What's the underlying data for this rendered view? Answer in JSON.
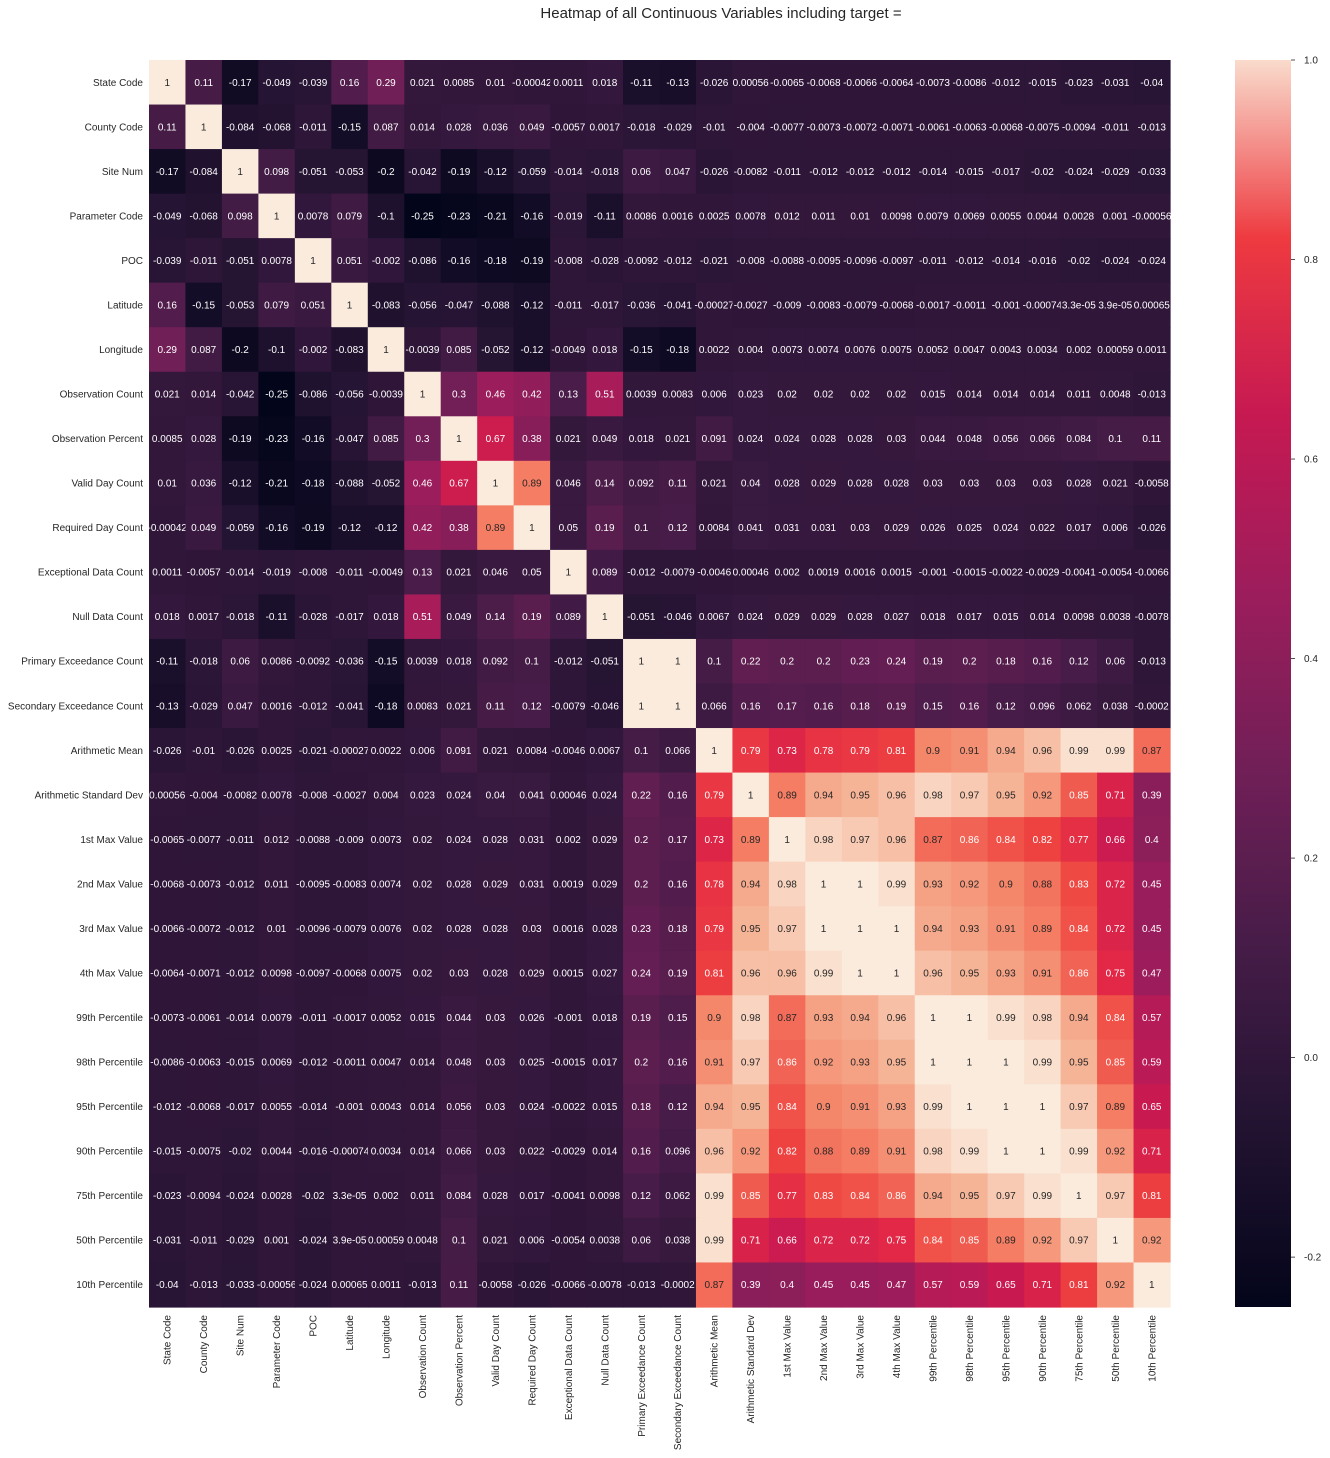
{
  "chart_data": {
    "type": "heatmap",
    "title": "Heatmap of all Continuous Variables including target =",
    "variables": [
      "State Code",
      "County Code",
      "Site Num",
      "Parameter Code",
      "POC",
      "Latitude",
      "Longitude",
      "Observation Count",
      "Observation Percent",
      "Valid Day Count",
      "Required Day Count",
      "Exceptional Data Count",
      "Null Data Count",
      "Primary Exceedance Count",
      "Secondary Exceedance Count",
      "Arithmetic Mean",
      "Arithmetic Standard Dev",
      "1st Max Value",
      "2nd Max Value",
      "3rd Max Value",
      "4th Max Value",
      "99th Percentile",
      "98th Percentile",
      "95th Percentile",
      "90th Percentile",
      "75th Percentile",
      "50th Percentile",
      "10th Percentile"
    ],
    "values": [
      [
        "1",
        "0.11",
        "-0.17",
        "-0.049",
        "-0.039",
        "0.16",
        "0.29",
        "0.021",
        "0.0085",
        "0.01",
        "-0.00042",
        "0.0011",
        "0.018",
        "-0.11",
        "-0.13",
        "-0.026",
        "0.00056",
        "-0.0065",
        "-0.0068",
        "-0.0066",
        "-0.0064",
        "-0.0073",
        "-0.0086",
        "-0.012",
        "-0.015",
        "-0.023",
        "-0.031",
        "-0.04"
      ],
      [
        "0.11",
        "1",
        "-0.084",
        "-0.068",
        "-0.011",
        "-0.15",
        "0.087",
        "0.014",
        "0.028",
        "0.036",
        "0.049",
        "-0.0057",
        "0.0017",
        "-0.018",
        "-0.029",
        "-0.01",
        "-0.004",
        "-0.0077",
        "-0.0073",
        "-0.0072",
        "-0.0071",
        "-0.0061",
        "-0.0063",
        "-0.0068",
        "-0.0075",
        "-0.0094",
        "-0.011",
        "-0.013"
      ],
      [
        "-0.17",
        "-0.084",
        "1",
        "0.098",
        "-0.051",
        "-0.053",
        "-0.2",
        "-0.042",
        "-0.19",
        "-0.12",
        "-0.059",
        "-0.014",
        "-0.018",
        "0.06",
        "0.047",
        "-0.026",
        "-0.0082",
        "-0.011",
        "-0.012",
        "-0.012",
        "-0.012",
        "-0.014",
        "-0.015",
        "-0.017",
        "-0.02",
        "-0.024",
        "-0.029",
        "-0.033"
      ],
      [
        "-0.049",
        "-0.068",
        "0.098",
        "1",
        "0.0078",
        "0.079",
        "-0.1",
        "-0.25",
        "-0.23",
        "-0.21",
        "-0.16",
        "-0.019",
        "-0.11",
        "0.0086",
        "0.0016",
        "0.0025",
        "0.0078",
        "0.012",
        "0.011",
        "0.01",
        "0.0098",
        "0.0079",
        "0.0069",
        "0.0055",
        "0.0044",
        "0.0028",
        "0.001",
        "-0.00056"
      ],
      [
        "-0.039",
        "-0.011",
        "-0.051",
        "0.0078",
        "1",
        "0.051",
        "-0.002",
        "-0.086",
        "-0.16",
        "-0.18",
        "-0.19",
        "-0.008",
        "-0.028",
        "-0.0092",
        "-0.012",
        "-0.021",
        "-0.008",
        "-0.0088",
        "-0.0095",
        "-0.0096",
        "-0.0097",
        "-0.011",
        "-0.012",
        "-0.014",
        "-0.016",
        "-0.02",
        "-0.024",
        "-0.024"
      ],
      [
        "0.16",
        "-0.15",
        "-0.053",
        "0.079",
        "0.051",
        "1",
        "-0.083",
        "-0.056",
        "-0.047",
        "-0.088",
        "-0.12",
        "-0.011",
        "-0.017",
        "-0.036",
        "-0.041",
        "-0.00027",
        "-0.0027",
        "-0.009",
        "-0.0083",
        "-0.0079",
        "-0.0068",
        "-0.0017",
        "-0.0011",
        "-0.001",
        "-0.00074",
        "3.3e-05",
        "3.9e-05",
        "0.00065"
      ],
      [
        "0.29",
        "0.087",
        "-0.2",
        "-0.1",
        "-0.002",
        "-0.083",
        "1",
        "-0.0039",
        "0.085",
        "-0.052",
        "-0.12",
        "-0.0049",
        "0.018",
        "-0.15",
        "-0.18",
        "0.0022",
        "0.004",
        "0.0073",
        "0.0074",
        "0.0076",
        "0.0075",
        "0.0052",
        "0.0047",
        "0.0043",
        "0.0034",
        "0.002",
        "0.00059",
        "0.0011"
      ],
      [
        "0.021",
        "0.014",
        "-0.042",
        "-0.25",
        "-0.086",
        "-0.056",
        "-0.0039",
        "1",
        "0.3",
        "0.46",
        "0.42",
        "0.13",
        "0.51",
        "0.0039",
        "0.0083",
        "0.006",
        "0.023",
        "0.02",
        "0.02",
        "0.02",
        "0.02",
        "0.015",
        "0.014",
        "0.014",
        "0.014",
        "0.011",
        "0.0048",
        "-0.013"
      ],
      [
        "0.0085",
        "0.028",
        "-0.19",
        "-0.23",
        "-0.16",
        "-0.047",
        "0.085",
        "0.3",
        "1",
        "0.67",
        "0.38",
        "0.021",
        "0.049",
        "0.018",
        "0.021",
        "0.091",
        "0.024",
        "0.024",
        "0.028",
        "0.028",
        "0.03",
        "0.044",
        "0.048",
        "0.056",
        "0.066",
        "0.084",
        "0.1",
        "0.11"
      ],
      [
        "0.01",
        "0.036",
        "-0.12",
        "-0.21",
        "-0.18",
        "-0.088",
        "-0.052",
        "0.46",
        "0.67",
        "1",
        "0.89",
        "0.046",
        "0.14",
        "0.092",
        "0.11",
        "0.021",
        "0.04",
        "0.028",
        "0.029",
        "0.028",
        "0.028",
        "0.03",
        "0.03",
        "0.03",
        "0.03",
        "0.028",
        "0.021",
        "-0.0058"
      ],
      [
        "-0.00042",
        "0.049",
        "-0.059",
        "-0.16",
        "-0.19",
        "-0.12",
        "-0.12",
        "0.42",
        "0.38",
        "0.89",
        "1",
        "0.05",
        "0.19",
        "0.1",
        "0.12",
        "0.0084",
        "0.041",
        "0.031",
        "0.031",
        "0.03",
        "0.029",
        "0.026",
        "0.025",
        "0.024",
        "0.022",
        "0.017",
        "0.006",
        "-0.026"
      ],
      [
        "0.0011",
        "-0.0057",
        "-0.014",
        "-0.019",
        "-0.008",
        "-0.011",
        "-0.0049",
        "0.13",
        "0.021",
        "0.046",
        "0.05",
        "1",
        "0.089",
        "-0.012",
        "-0.0079",
        "-0.0046",
        "0.00046",
        "0.002",
        "0.0019",
        "0.0016",
        "0.0015",
        "-0.001",
        "-0.0015",
        "-0.0022",
        "-0.0029",
        "-0.0041",
        "-0.0054",
        "-0.0066"
      ],
      [
        "0.018",
        "0.0017",
        "-0.018",
        "-0.11",
        "-0.028",
        "-0.017",
        "0.018",
        "0.51",
        "0.049",
        "0.14",
        "0.19",
        "0.089",
        "1",
        "-0.051",
        "-0.046",
        "0.0067",
        "0.024",
        "0.029",
        "0.029",
        "0.028",
        "0.027",
        "0.018",
        "0.017",
        "0.015",
        "0.014",
        "0.0098",
        "0.0038",
        "-0.0078"
      ],
      [
        "-0.11",
        "-0.018",
        "0.06",
        "0.0086",
        "-0.0092",
        "-0.036",
        "-0.15",
        "0.0039",
        "0.018",
        "0.092",
        "0.1",
        "-0.012",
        "-0.051",
        "1",
        "1",
        "0.1",
        "0.22",
        "0.2",
        "0.2",
        "0.23",
        "0.24",
        "0.19",
        "0.2",
        "0.18",
        "0.16",
        "0.12",
        "0.06",
        "-0.013"
      ],
      [
        "-0.13",
        "-0.029",
        "0.047",
        "0.0016",
        "-0.012",
        "-0.041",
        "-0.18",
        "0.0083",
        "0.021",
        "0.11",
        "0.12",
        "-0.0079",
        "-0.046",
        "1",
        "1",
        "0.066",
        "0.16",
        "0.17",
        "0.16",
        "0.18",
        "0.19",
        "0.15",
        "0.16",
        "0.12",
        "0.096",
        "0.062",
        "0.038",
        "-0.0002"
      ],
      [
        "-0.026",
        "-0.01",
        "-0.026",
        "0.0025",
        "-0.021",
        "-0.00027",
        "0.0022",
        "0.006",
        "0.091",
        "0.021",
        "0.0084",
        "-0.0046",
        "0.0067",
        "0.1",
        "0.066",
        "1",
        "0.79",
        "0.73",
        "0.78",
        "0.79",
        "0.81",
        "0.9",
        "0.91",
        "0.94",
        "0.96",
        "0.99",
        "0.99",
        "0.87"
      ],
      [
        "0.00056",
        "-0.004",
        "-0.0082",
        "0.0078",
        "-0.008",
        "-0.0027",
        "0.004",
        "0.023",
        "0.024",
        "0.04",
        "0.041",
        "0.00046",
        "0.024",
        "0.22",
        "0.16",
        "0.79",
        "1",
        "0.89",
        "0.94",
        "0.95",
        "0.96",
        "0.98",
        "0.97",
        "0.95",
        "0.92",
        "0.85",
        "0.71",
        "0.39"
      ],
      [
        "-0.0065",
        "-0.0077",
        "-0.011",
        "0.012",
        "-0.0088",
        "-0.009",
        "0.0073",
        "0.02",
        "0.024",
        "0.028",
        "0.031",
        "0.002",
        "0.029",
        "0.2",
        "0.17",
        "0.73",
        "0.89",
        "1",
        "0.98",
        "0.97",
        "0.96",
        "0.87",
        "0.86",
        "0.84",
        "0.82",
        "0.77",
        "0.66",
        "0.4"
      ],
      [
        "-0.0068",
        "-0.0073",
        "-0.012",
        "0.011",
        "-0.0095",
        "-0.0083",
        "0.0074",
        "0.02",
        "0.028",
        "0.029",
        "0.031",
        "0.0019",
        "0.029",
        "0.2",
        "0.16",
        "0.78",
        "0.94",
        "0.98",
        "1",
        "1",
        "0.99",
        "0.93",
        "0.92",
        "0.9",
        "0.88",
        "0.83",
        "0.72",
        "0.45"
      ],
      [
        "-0.0066",
        "-0.0072",
        "-0.012",
        "0.01",
        "-0.0096",
        "-0.0079",
        "0.0076",
        "0.02",
        "0.028",
        "0.028",
        "0.03",
        "0.0016",
        "0.028",
        "0.23",
        "0.18",
        "0.79",
        "0.95",
        "0.97",
        "1",
        "1",
        "1",
        "0.94",
        "0.93",
        "0.91",
        "0.89",
        "0.84",
        "0.72",
        "0.45"
      ],
      [
        "-0.0064",
        "-0.0071",
        "-0.012",
        "0.0098",
        "-0.0097",
        "-0.0068",
        "0.0075",
        "0.02",
        "0.03",
        "0.028",
        "0.029",
        "0.0015",
        "0.027",
        "0.24",
        "0.19",
        "0.81",
        "0.96",
        "0.96",
        "0.99",
        "1",
        "1",
        "0.96",
        "0.95",
        "0.93",
        "0.91",
        "0.86",
        "0.75",
        "0.47"
      ],
      [
        "-0.0073",
        "-0.0061",
        "-0.014",
        "0.0079",
        "-0.011",
        "-0.0017",
        "0.0052",
        "0.015",
        "0.044",
        "0.03",
        "0.026",
        "-0.001",
        "0.018",
        "0.19",
        "0.15",
        "0.9",
        "0.98",
        "0.87",
        "0.93",
        "0.94",
        "0.96",
        "1",
        "1",
        "0.99",
        "0.98",
        "0.94",
        "0.84",
        "0.57"
      ],
      [
        "-0.0086",
        "-0.0063",
        "-0.015",
        "0.0069",
        "-0.012",
        "-0.0011",
        "0.0047",
        "0.014",
        "0.048",
        "0.03",
        "0.025",
        "-0.0015",
        "0.017",
        "0.2",
        "0.16",
        "0.91",
        "0.97",
        "0.86",
        "0.92",
        "0.93",
        "0.95",
        "1",
        "1",
        "1",
        "0.99",
        "0.95",
        "0.85",
        "0.59"
      ],
      [
        "-0.012",
        "-0.0068",
        "-0.017",
        "0.0055",
        "-0.014",
        "-0.001",
        "0.0043",
        "0.014",
        "0.056",
        "0.03",
        "0.024",
        "-0.0022",
        "0.015",
        "0.18",
        "0.12",
        "0.94",
        "0.95",
        "0.84",
        "0.9",
        "0.91",
        "0.93",
        "0.99",
        "1",
        "1",
        "1",
        "0.97",
        "0.89",
        "0.65"
      ],
      [
        "-0.015",
        "-0.0075",
        "-0.02",
        "0.0044",
        "-0.016",
        "-0.00074",
        "0.0034",
        "0.014",
        "0.066",
        "0.03",
        "0.022",
        "-0.0029",
        "0.014",
        "0.16",
        "0.096",
        "0.96",
        "0.92",
        "0.82",
        "0.88",
        "0.89",
        "0.91",
        "0.98",
        "0.99",
        "1",
        "1",
        "0.99",
        "0.92",
        "0.71"
      ],
      [
        "-0.023",
        "-0.0094",
        "-0.024",
        "0.0028",
        "-0.02",
        "3.3e-05",
        "0.002",
        "0.011",
        "0.084",
        "0.028",
        "0.017",
        "-0.0041",
        "0.0098",
        "0.12",
        "0.062",
        "0.99",
        "0.85",
        "0.77",
        "0.83",
        "0.84",
        "0.86",
        "0.94",
        "0.95",
        "0.97",
        "0.99",
        "1",
        "0.97",
        "0.81"
      ],
      [
        "-0.031",
        "-0.011",
        "-0.029",
        "0.001",
        "-0.024",
        "3.9e-05",
        "0.00059",
        "0.0048",
        "0.1",
        "0.021",
        "0.006",
        "-0.0054",
        "0.0038",
        "0.06",
        "0.038",
        "0.99",
        "0.71",
        "0.66",
        "0.72",
        "0.72",
        "0.75",
        "0.84",
        "0.85",
        "0.89",
        "0.92",
        "0.97",
        "1",
        "0.92"
      ],
      [
        "-0.04",
        "-0.013",
        "-0.033",
        "-0.00056",
        "-0.024",
        "0.00065",
        "0.0011",
        "-0.013",
        "0.11",
        "-0.0058",
        "-0.026",
        "-0.0066",
        "-0.0078",
        "-0.013",
        "-0.0002",
        "0.87",
        "0.39",
        "0.4",
        "0.45",
        "0.45",
        "0.47",
        "0.57",
        "0.59",
        "0.65",
        "0.71",
        "0.81",
        "0.92",
        "1"
      ]
    ],
    "color_scale": {
      "name": "rocket",
      "vmin": -0.25,
      "vmax": 1.0,
      "ticks": [
        "1.0",
        "0.8",
        "0.6",
        "0.4",
        "0.2",
        "0.0",
        "-0.2"
      ]
    }
  }
}
